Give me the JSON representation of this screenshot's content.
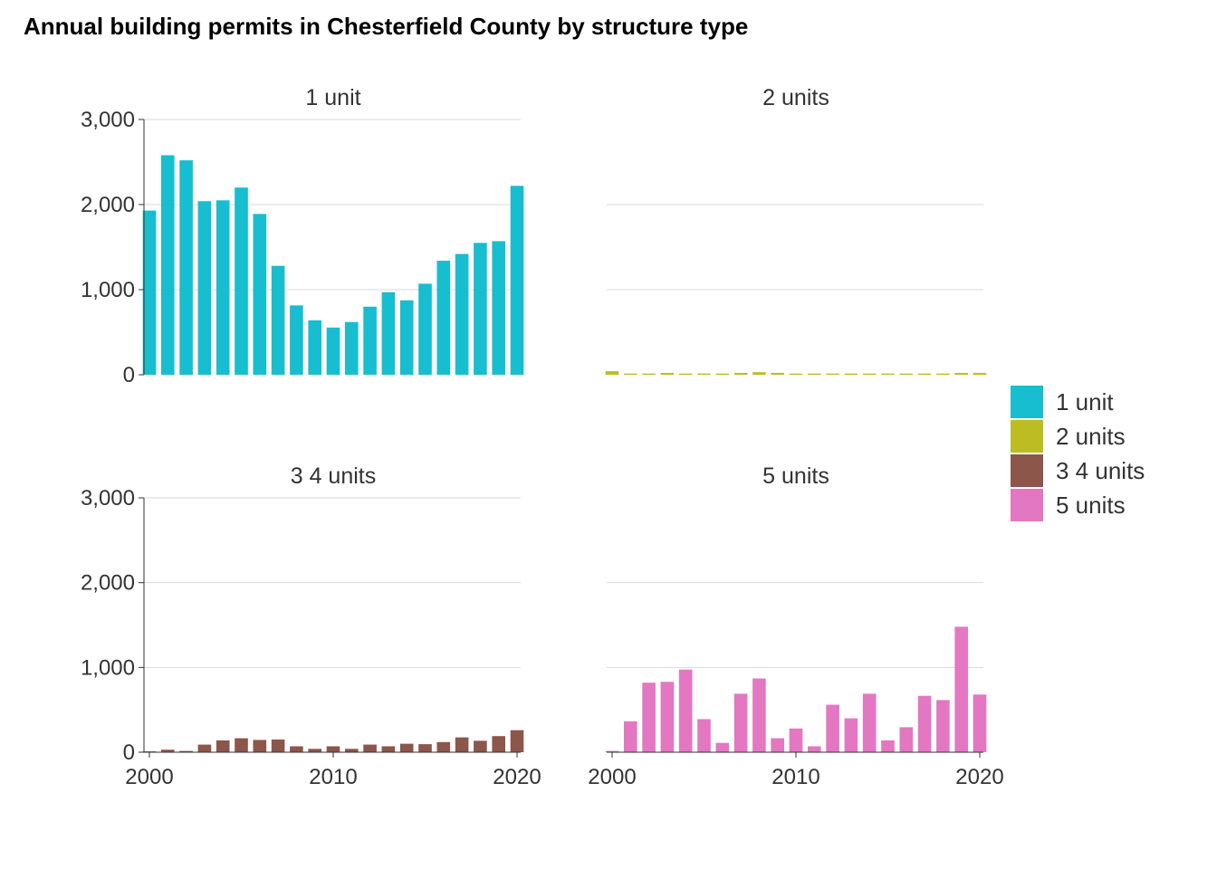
{
  "chart_data": {
    "type": "bar",
    "title": "Annual building permits in Chesterfield County by structure type",
    "xlabel": "",
    "ylabel": "",
    "x": [
      2000,
      2001,
      2002,
      2003,
      2004,
      2005,
      2006,
      2007,
      2008,
      2009,
      2010,
      2011,
      2012,
      2013,
      2014,
      2015,
      2016,
      2017,
      2018,
      2019,
      2020
    ],
    "ylim": [
      0,
      3000
    ],
    "y_ticks": [
      0,
      1000,
      2000,
      3000
    ],
    "y_tick_labels": [
      "0",
      "1,000",
      "2,000",
      "3,000"
    ],
    "x_ticks": [
      2000,
      2010,
      2020
    ],
    "x_tick_labels": [
      "2000",
      "2010",
      "2020"
    ],
    "grid": "horizontal major",
    "legend_position": "right",
    "series": [
      {
        "name": "1 unit",
        "color": "#17becf",
        "values": [
          1930,
          2580,
          2520,
          2040,
          2050,
          2200,
          1890,
          1280,
          815,
          640,
          555,
          620,
          800,
          970,
          875,
          1070,
          1340,
          1420,
          1550,
          1570,
          2220
        ]
      },
      {
        "name": "2 units",
        "color": "#bcbd22",
        "values": [
          42,
          14,
          14,
          22,
          14,
          14,
          14,
          22,
          30,
          22,
          14,
          14,
          14,
          14,
          14,
          14,
          14,
          14,
          14,
          22,
          22
        ]
      },
      {
        "name": "3 4 units",
        "color": "#8c564b",
        "values": [
          10,
          30,
          15,
          90,
          140,
          165,
          145,
          150,
          70,
          40,
          70,
          40,
          90,
          70,
          100,
          95,
          120,
          175,
          135,
          190,
          260
        ]
      },
      {
        "name": "5 units",
        "color": "#e377c2",
        "values": [
          15,
          365,
          820,
          830,
          975,
          390,
          110,
          690,
          870,
          165,
          280,
          70,
          560,
          400,
          690,
          140,
          295,
          665,
          615,
          1480,
          680
        ]
      }
    ]
  }
}
